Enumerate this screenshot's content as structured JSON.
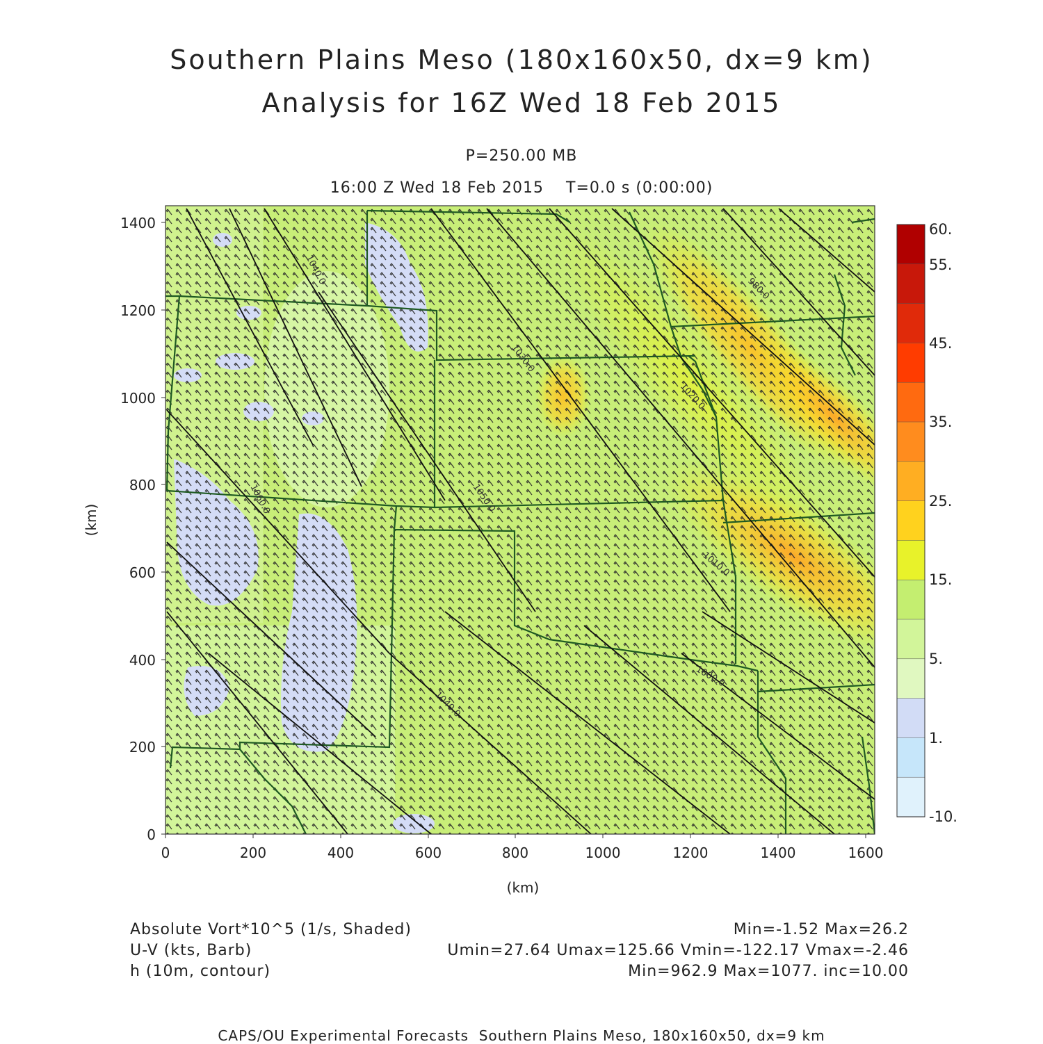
{
  "title": {
    "line1": "Southern Plains Meso (180x160x50, dx=9 km)",
    "line2": "Analysis for 16Z Wed 18 Feb 2015"
  },
  "subtitle": {
    "level": "P=250.00 MB",
    "time": "16:00 Z Wed 18 Feb 2015    T=0.0 s (0:00:00)"
  },
  "axes": {
    "x_label": "(km)",
    "y_label": "(km)",
    "x_range": [
      0,
      1620
    ],
    "y_range": [
      0,
      1440
    ],
    "x_ticks": [
      "0",
      "200",
      "400",
      "600",
      "800",
      "1000",
      "1200",
      "1400",
      "1600"
    ],
    "y_ticks": [
      "0",
      "200",
      "400",
      "600",
      "800",
      "1000",
      "1200",
      "1400"
    ]
  },
  "colorbar": {
    "labels": [
      "60.",
      "55.",
      "45.",
      "35.",
      "25.",
      "15.",
      "5.",
      "1.",
      "-10."
    ],
    "colors": [
      "#b00000",
      "#c8180a",
      "#e02a0a",
      "#ff3c00",
      "#ff6a10",
      "#ff8c1e",
      "#ffae22",
      "#ffd21e",
      "#e8f22a",
      "#c4ee70",
      "#d2f59a",
      "#e0f8c0",
      "#d2dcf6",
      "#c6e6fa",
      "#e0f2fc"
    ]
  },
  "contour_labels": [
    "1040.0",
    "1060.0",
    "1050.0",
    "1040.0",
    "1030.0",
    "1020.0",
    "1010.0",
    "1000.0",
    "980.0"
  ],
  "footer": {
    "field1": "Absolute Vort*10^5 (1/s, Shaded)",
    "field1_stats": "Min=-1.52 Max=26.2",
    "field2": "U-V (kts, Barb)",
    "field2_stats": "Umin=27.64 Umax=125.66 Vmin=-122.17 Vmax=-2.46",
    "field3": "h (10m, contour)",
    "field3_stats": "Min=962.9 Max=1077. inc=10.00",
    "credit": "CAPS/OU Experimental Forecasts  Southern Plains Meso, 180x160x50, dx=9 km"
  }
}
